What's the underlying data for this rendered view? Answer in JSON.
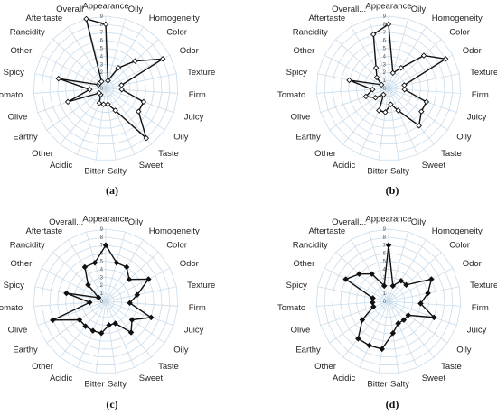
{
  "chart_data": [
    {
      "type": "radar",
      "panel": "(a)",
      "rlim": [
        0,
        9
      ],
      "ticks": [
        "0",
        "1",
        "2",
        "3",
        "4",
        "5",
        "6",
        "7",
        "8",
        "9"
      ],
      "categories": [
        "Appearance",
        "Oily",
        "Homogeneity",
        "Color",
        "Odor",
        "Texture",
        "Firm",
        "Juicy",
        "Oily",
        "Taste",
        "Sweet",
        "Salty",
        "Bitter",
        "Acidic",
        "Other",
        "Earthy",
        "Olive",
        "Tomato",
        "Spicy",
        "Other",
        "Rancidity",
        "Aftertaste",
        "Overall"
      ],
      "series": [
        {
          "marker": "open-diamond",
          "values": [
            8,
            1,
            3,
            5,
            8,
            2,
            2,
            5,
            5,
            8,
            3,
            2,
            2,
            2,
            1,
            1,
            5,
            2,
            6,
            1,
            1,
            1,
            9
          ]
        }
      ]
    },
    {
      "type": "radar",
      "panel": "(b)",
      "rlim": [
        0,
        9
      ],
      "ticks": [
        "0",
        "1",
        "2",
        "3",
        "4",
        "5",
        "6",
        "7",
        "8",
        "9"
      ],
      "categories": [
        "Appearance",
        "Oily",
        "Homogeneity",
        "Color",
        "Odor",
        "Texture",
        "Firm",
        "Juicy",
        "Oily",
        "Taste",
        "Sweet",
        "Salty",
        "Bitter",
        "Acidic",
        "Other",
        "Earthy",
        "Olive",
        "Tomato",
        "Spicy",
        "Other",
        "Rancidity",
        "Aftertaste",
        "Overall..."
      ],
      "series": [
        {
          "marker": "open-diamond",
          "values": [
            8,
            2,
            3,
            6,
            8,
            2,
            2,
            5,
            5,
            6,
            3,
            2,
            3,
            3,
            1,
            2,
            3,
            2,
            5,
            1,
            2,
            3,
            7
          ]
        }
      ]
    },
    {
      "type": "radar",
      "panel": "(c)",
      "rlim": [
        0,
        9
      ],
      "ticks": [
        "0",
        "1",
        "2",
        "3",
        "4",
        "5",
        "6",
        "7",
        "8",
        "9"
      ],
      "categories": [
        "Appearance",
        "Oily",
        "Homogeneity",
        "Color",
        "Odor",
        "Texture",
        "Firm",
        "Juicy",
        "Oily",
        "Taste",
        "Sweet",
        "Salty",
        "Bitter",
        "Acidic",
        "Other",
        "Earthy",
        "Olive",
        "Tomato",
        "Spicy",
        "Other",
        "Rancidity",
        "Aftertaste",
        "Overall..."
      ],
      "series": [
        {
          "marker": "filled-diamond",
          "values": [
            7,
            5,
            5,
            4,
            6,
            4,
            3,
            6,
            4,
            5,
            3,
            3,
            4,
            4,
            4,
            4,
            7,
            2,
            5,
            1,
            3,
            5,
            5
          ]
        }
      ]
    },
    {
      "type": "radar",
      "panel": "(d)",
      "rlim": [
        0,
        9
      ],
      "ticks": [
        "0",
        "1",
        "2",
        "3",
        "4",
        "5",
        "6",
        "7",
        "8",
        "9"
      ],
      "categories": [
        "Appearance",
        "Oily",
        "Homogeneity",
        "Color",
        "Odor",
        "Texture",
        "Firm",
        "Juicy",
        "Oily",
        "Taste",
        "Sweet",
        "Salty",
        "Bitter",
        "Acidic",
        "Other",
        "Earthy",
        "Olive",
        "Tomato",
        "Spicy",
        "Other",
        "Rancidity",
        "Aftertaste",
        "Overall..."
      ],
      "series": [
        {
          "marker": "filled-diamond",
          "values": [
            7,
            2,
            3,
            3,
            6,
            5,
            4,
            6,
            3,
            3,
            3,
            4,
            6,
            6,
            6,
            4,
            2,
            2,
            2,
            6,
            5,
            4,
            2
          ]
        }
      ]
    }
  ]
}
